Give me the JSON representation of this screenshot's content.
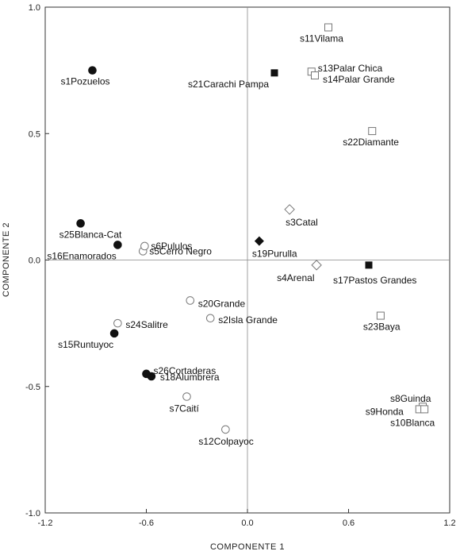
{
  "chart_data": {
    "type": "scatter",
    "title": "",
    "xlabel": "COMPONENTE 1",
    "ylabel": "COMPONENTE 2",
    "xlim": [
      -1.2,
      1.2
    ],
    "ylim": [
      -1.0,
      1.0
    ],
    "x_ticks": [
      "-1.2",
      "-0.6",
      "0.0",
      "0.6",
      "1.2"
    ],
    "y_ticks": [
      "1.0",
      "0.5",
      "0.0",
      "-0.5",
      "-1.0"
    ],
    "reference_lines": {
      "x": 0,
      "y": 0
    },
    "grid": false,
    "legend": "none",
    "points": [
      {
        "label": "s1Pozuelos",
        "x": -0.92,
        "y": 0.75,
        "marker": "filled-circle"
      },
      {
        "label": "s2Isla Grande",
        "x": -0.22,
        "y": -0.23,
        "marker": "open-circle"
      },
      {
        "label": "s3Catal",
        "x": 0.25,
        "y": 0.2,
        "marker": "open-diamond"
      },
      {
        "label": "s4Arenal",
        "x": 0.41,
        "y": -0.02,
        "marker": "open-diamond"
      },
      {
        "label": "s5Cerro Negro",
        "x": -0.62,
        "y": 0.035,
        "marker": "open-circle"
      },
      {
        "label": "s6Pululos",
        "x": -0.61,
        "y": 0.055,
        "marker": "open-circle"
      },
      {
        "label": "s7Caití",
        "x": -0.36,
        "y": -0.54,
        "marker": "open-circle"
      },
      {
        "label": "s8Guinda",
        "x": 1.04,
        "y": -0.58,
        "marker": "open-square"
      },
      {
        "label": "s9Honda",
        "x": 1.02,
        "y": -0.59,
        "marker": "open-square"
      },
      {
        "label": "s10Blanca",
        "x": 1.05,
        "y": -0.59,
        "marker": "open-square"
      },
      {
        "label": "s11Vilama",
        "x": 0.48,
        "y": 0.92,
        "marker": "open-square"
      },
      {
        "label": "s12Colpayoc",
        "x": -0.13,
        "y": -0.67,
        "marker": "open-circle"
      },
      {
        "label": "s13Palar Chica",
        "x": 0.38,
        "y": 0.745,
        "marker": "open-square"
      },
      {
        "label": "s14Palar Grande",
        "x": 0.4,
        "y": 0.73,
        "marker": "open-square"
      },
      {
        "label": "s15Runtuyoc",
        "x": -0.79,
        "y": -0.29,
        "marker": "filled-circle"
      },
      {
        "label": "s16Enamorados",
        "x": -0.77,
        "y": 0.06,
        "marker": "filled-circle"
      },
      {
        "label": "s17Pastos Grandes",
        "x": 0.72,
        "y": -0.02,
        "marker": "filled-square"
      },
      {
        "label": "s18Alumbrera",
        "x": -0.57,
        "y": -0.46,
        "marker": "filled-circle"
      },
      {
        "label": "s19Purulla",
        "x": 0.07,
        "y": 0.075,
        "marker": "filled-diamond"
      },
      {
        "label": "s20Grande",
        "x": -0.34,
        "y": -0.16,
        "marker": "open-circle"
      },
      {
        "label": "s21Carachi Pampa",
        "x": 0.16,
        "y": 0.74,
        "marker": "filled-square"
      },
      {
        "label": "s22Diamante",
        "x": 0.74,
        "y": 0.51,
        "marker": "open-square"
      },
      {
        "label": "s23Baya",
        "x": 0.79,
        "y": -0.22,
        "marker": "open-square"
      },
      {
        "label": "s24Salitre",
        "x": -0.77,
        "y": -0.25,
        "marker": "open-circle"
      },
      {
        "label": "s25Blanca-Cat",
        "x": -0.99,
        "y": 0.145,
        "marker": "filled-circle"
      },
      {
        "label": "s26Cortaderas",
        "x": -0.6,
        "y": -0.45,
        "marker": "filled-circle"
      }
    ]
  }
}
